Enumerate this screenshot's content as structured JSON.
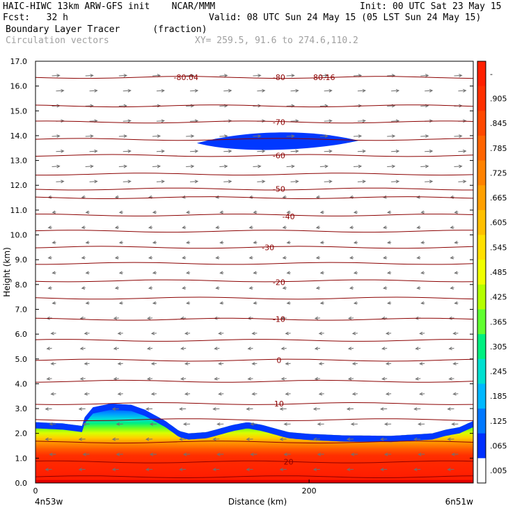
{
  "header": {
    "model_line": "HAIC-HIWC 13km ARW-GFS init    NCAR/MMM",
    "init_line": "Init: 00 UTC Sat 23 May 15",
    "fcst_line": "Fcst:   32 h",
    "valid_line": "Valid: 08 UTC Sun 24 May 15 (05 LST Sun 24 May 15)",
    "field_line": "Boundary Layer Tracer      (fraction)",
    "vector_line": "Circulation vectors",
    "xy_line": "XY= 259.5, 91.6 to 274.6,110.2"
  },
  "chart_data": {
    "type": "cross-section",
    "ylabel": "Height (km)",
    "xlabel": "Distance (km)",
    "ylim": [
      0,
      17
    ],
    "xlim": [
      0,
      320
    ],
    "y_ticks": [
      "0.0",
      "1.0",
      "2.0",
      "3.0",
      "4.0",
      "5.0",
      "6.0",
      "7.0",
      "8.0",
      "9.0",
      "10.0",
      "11.0",
      "12.0",
      "13.0",
      "14.0",
      "15.0",
      "16.0",
      "17.0"
    ],
    "x_ticks": [
      {
        "x": 0,
        "label": "0"
      },
      {
        "x": 200,
        "label": "200"
      }
    ],
    "x_end_labels": {
      "left": "4n53w",
      "right": "6n51w"
    },
    "colorbar": {
      "labels": [
        "-",
        ".905",
        ".845",
        ".785",
        ".725",
        ".665",
        ".605",
        ".545",
        ".485",
        ".425",
        ".365",
        ".305",
        ".245",
        ".185",
        ".125",
        ".065",
        ".005"
      ],
      "colors": [
        "#ff2000",
        "#ff3000",
        "#ff4800",
        "#ff6400",
        "#ff8200",
        "#ffa000",
        "#ffc000",
        "#ffe000",
        "#f0ff00",
        "#b4ff00",
        "#60ff30",
        "#00f080",
        "#00e0d0",
        "#00b8ff",
        "#0078ff",
        "#0030ff",
        "#ffffff"
      ]
    },
    "tracer_top_km": {
      "x": [
        0,
        20,
        34,
        36,
        42,
        55,
        70,
        80,
        95,
        105,
        112,
        125,
        145,
        155,
        165,
        175,
        185,
        200,
        225,
        260,
        290,
        300,
        310,
        320
      ],
      "y": [
        2.45,
        2.4,
        2.3,
        2.65,
        3.05,
        3.2,
        3.15,
        2.95,
        2.5,
        2.1,
        2.0,
        2.05,
        2.35,
        2.45,
        2.35,
        2.2,
        2.05,
        1.98,
        1.92,
        1.9,
        2.0,
        2.15,
        2.25,
        2.5
      ]
    },
    "cirrus_band": {
      "x_start": 118,
      "x_end": 236,
      "y_center": 13.7,
      "y_top_max": 14.25,
      "y_bottom": 13.35
    },
    "temperature_contours": [
      {
        "label": "-80",
        "x": 178,
        "y": 16.35
      },
      {
        "label": "-80.04",
        "x": 110,
        "y": 16.35
      },
      {
        "label": "-80.16",
        "x": 210,
        "y": 16.35
      },
      {
        "label": "-70",
        "x": 178,
        "y": 14.55
      },
      {
        "label": "-60",
        "x": 178,
        "y": 13.2
      },
      {
        "label": "-50",
        "x": 178,
        "y": 11.85
      },
      {
        "label": "-40",
        "x": 185,
        "y": 10.75
      },
      {
        "label": "-30",
        "x": 170,
        "y": 9.5
      },
      {
        "label": "-20",
        "x": 178,
        "y": 8.1
      },
      {
        "label": "-10",
        "x": 178,
        "y": 6.6
      },
      {
        "label": "0",
        "x": 178,
        "y": 4.95
      },
      {
        "label": "10",
        "x": 178,
        "y": 3.2
      },
      {
        "label": "20",
        "x": 185,
        "y": 0.85
      }
    ],
    "isotherm_heights_km": [
      0.25,
      0.85,
      1.65,
      2.55,
      3.2,
      4.1,
      4.95,
      5.75,
      6.6,
      7.45,
      8.15,
      8.85,
      9.5,
      10.15,
      10.8,
      11.5,
      11.85,
      12.45,
      13.2,
      13.85,
      14.55,
      15.2,
      16.35
    ]
  }
}
